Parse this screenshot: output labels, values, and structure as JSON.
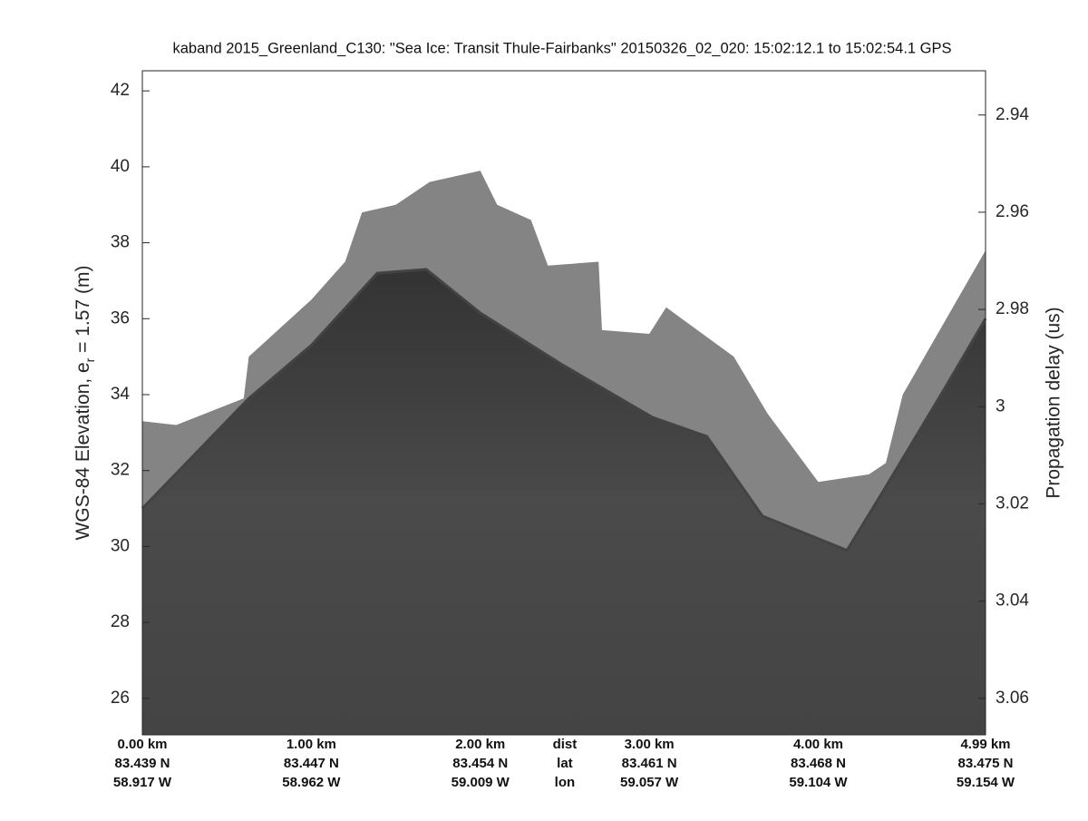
{
  "chart_data": {
    "type": "echogram",
    "title": "kaband 2015_Greenland_C130: \"Sea Ice: Transit Thule-Fairbanks\"  20150326_02_020: 15:02:12.1 to 15:02:54.1 GPS",
    "ylabel": {
      "text": "WGS-84 Elevation, e",
      "subscript": "r",
      "suffix": " = 1.57 (m)"
    },
    "y2label": "Propagation delay (us)",
    "xlim": [
      0,
      4.99
    ],
    "xticks": [
      {
        "value": 0,
        "label": "0.00 km"
      },
      {
        "value": 1,
        "label": "1.00 km"
      },
      {
        "value": 2,
        "label": "2.00 km"
      },
      {
        "value": 3,
        "label": "3.00 km"
      },
      {
        "value": 4,
        "label": "4.00 km"
      },
      {
        "value": 4.99,
        "label": "4.99 km"
      }
    ],
    "lat_labels": [
      "83.439 N",
      "83.447 N",
      "83.454 N",
      "83.461 N",
      "83.468 N",
      "83.475 N"
    ],
    "lon_labels": [
      "58.917 W",
      "58.962 W",
      "59.009 W",
      "59.057 W",
      "59.104 W",
      "59.154 W"
    ],
    "row_labels": [
      "dist",
      "lat",
      "lon"
    ],
    "ylim": [
      25.04,
      42.53
    ],
    "yticks": [
      26,
      28,
      30,
      32,
      34,
      36,
      38,
      40,
      42
    ],
    "y2lim": [
      3.0675,
      2.9309
    ],
    "y2ticks": [
      2.94,
      2.96,
      2.98,
      3,
      3.02,
      3.04,
      3.06
    ],
    "clutter_edge": {
      "color": "#848484",
      "x": [
        0,
        0.2,
        0.6,
        0.63,
        1.0,
        1.2,
        1.3,
        1.5,
        1.7,
        2.0,
        2.1,
        2.3,
        2.4,
        2.7,
        2.72,
        3.0,
        3.1,
        3.5,
        3.7,
        4.0,
        4.3,
        4.4,
        4.5,
        4.99
      ],
      "values": [
        33.3,
        33.2,
        33.9,
        35.0,
        36.5,
        37.5,
        38.8,
        39.0,
        39.6,
        39.9,
        39.0,
        38.6,
        37.4,
        37.5,
        35.7,
        35.6,
        36.3,
        35.0,
        33.5,
        31.7,
        31.9,
        32.2,
        34.0,
        37.8
      ]
    },
    "surface": {
      "color": "#434343",
      "x": [
        0,
        0.63,
        1.0,
        1.39,
        1.68,
        2.0,
        2.48,
        3.02,
        3.34,
        3.67,
        4.17,
        4.39,
        4.74,
        4.99
      ],
      "values": [
        31.0,
        33.9,
        35.3,
        37.2,
        37.3,
        36.15,
        34.8,
        33.4,
        32.9,
        30.8,
        29.9,
        31.5,
        34.1,
        36.0
      ]
    }
  }
}
